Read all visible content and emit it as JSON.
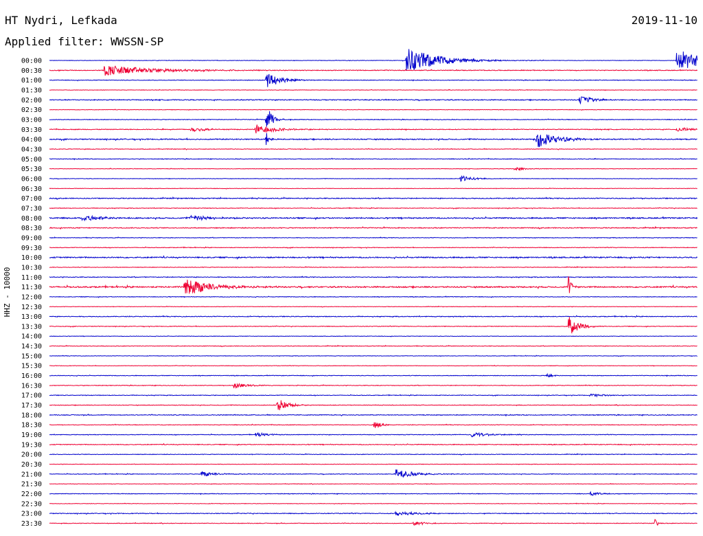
{
  "header": {
    "station": "HT Nydri, Lefkada",
    "date": "2019-11-10",
    "filter_prefix": "Applied filter:",
    "filter_name": "WWSSN-SP"
  },
  "chart_data": {
    "type": "helicorder",
    "ylabel": "HHZ - 10000",
    "row_labels": [
      "00:00",
      "00:30",
      "01:00",
      "01:30",
      "02:00",
      "02:30",
      "03:00",
      "03:30",
      "04:00",
      "04:30",
      "05:00",
      "05:30",
      "06:00",
      "06:30",
      "07:00",
      "07:30",
      "08:00",
      "08:30",
      "09:00",
      "09:30",
      "10:00",
      "10:30",
      "11:00",
      "11:30",
      "12:00",
      "12:30",
      "13:00",
      "13:30",
      "14:00",
      "14:30",
      "15:00",
      "15:30",
      "16:00",
      "16:30",
      "17:00",
      "17:30",
      "18:00",
      "18:30",
      "19:00",
      "19:30",
      "20:00",
      "20:30",
      "21:00",
      "21:30",
      "22:00",
      "22:30",
      "23:00",
      "23:30"
    ],
    "row_duration_min": 30,
    "colors": [
      "#0000cc",
      "#ee0033"
    ],
    "noise_levels": [
      0.3,
      0.5,
      0.4,
      0.3,
      0.6,
      0.3,
      0.4,
      0.5,
      0.7,
      0.4,
      0.4,
      0.3,
      0.3,
      0.3,
      0.6,
      0.4,
      0.8,
      0.6,
      0.4,
      0.4,
      0.8,
      0.4,
      0.5,
      0.9,
      0.4,
      0.3,
      0.5,
      0.4,
      0.3,
      0.4,
      0.3,
      0.3,
      0.4,
      0.4,
      0.4,
      0.4,
      0.5,
      0.4,
      0.4,
      0.5,
      0.4,
      0.3,
      0.4,
      0.3,
      0.4,
      0.3,
      0.5,
      0.4
    ],
    "events": [
      {
        "row": 0,
        "minute": 16.5,
        "amp": 20,
        "dur": 2.5
      },
      {
        "row": 0,
        "minute": 29.0,
        "amp": 18,
        "dur": 2.2
      },
      {
        "row": 1,
        "minute": 2.5,
        "amp": 8,
        "dur": 4.0
      },
      {
        "row": 2,
        "minute": 10.0,
        "amp": 12,
        "dur": 1.2
      },
      {
        "row": 4,
        "minute": 24.5,
        "amp": 6,
        "dur": 1.2
      },
      {
        "row": 6,
        "minute": 10.0,
        "amp": 30,
        "dur": 0.4
      },
      {
        "row": 7,
        "minute": 6.5,
        "amp": 4,
        "dur": 1.2
      },
      {
        "row": 7,
        "minute": 9.5,
        "amp": 8,
        "dur": 1.6
      },
      {
        "row": 7,
        "minute": 29.0,
        "amp": 4,
        "dur": 1.0
      },
      {
        "row": 8,
        "minute": 10.0,
        "amp": 14,
        "dur": 0.2
      },
      {
        "row": 8,
        "minute": 22.5,
        "amp": 14,
        "dur": 1.6
      },
      {
        "row": 11,
        "minute": 21.5,
        "amp": 4,
        "dur": 0.8
      },
      {
        "row": 12,
        "minute": 19.0,
        "amp": 5,
        "dur": 1.0
      },
      {
        "row": 16,
        "minute": 1.5,
        "amp": 6,
        "dur": 1.2
      },
      {
        "row": 16,
        "minute": 6.5,
        "amp": 4,
        "dur": 2.0
      },
      {
        "row": 23,
        "minute": 6.2,
        "amp": 14,
        "dur": 2.0
      },
      {
        "row": 23,
        "minute": 24.0,
        "amp": 30,
        "dur": 0.2
      },
      {
        "row": 27,
        "minute": 24.0,
        "amp": 16,
        "dur": 0.8
      },
      {
        "row": 32,
        "minute": 23.0,
        "amp": 4,
        "dur": 0.5
      },
      {
        "row": 33,
        "minute": 8.5,
        "amp": 4,
        "dur": 1.2
      },
      {
        "row": 34,
        "minute": 25.0,
        "amp": 3,
        "dur": 1.0
      },
      {
        "row": 35,
        "minute": 10.5,
        "amp": 12,
        "dur": 0.8
      },
      {
        "row": 37,
        "minute": 15.0,
        "amp": 12,
        "dur": 0.4
      },
      {
        "row": 38,
        "minute": 9.5,
        "amp": 4,
        "dur": 1.0
      },
      {
        "row": 38,
        "minute": 19.5,
        "amp": 4,
        "dur": 1.4
      },
      {
        "row": 42,
        "minute": 7.0,
        "amp": 4,
        "dur": 1.2
      },
      {
        "row": 42,
        "minute": 16.0,
        "amp": 8,
        "dur": 1.4
      },
      {
        "row": 44,
        "minute": 25.0,
        "amp": 3,
        "dur": 1.0
      },
      {
        "row": 46,
        "minute": 16.0,
        "amp": 4,
        "dur": 1.6
      },
      {
        "row": 47,
        "minute": 16.8,
        "amp": 3,
        "dur": 1.2
      },
      {
        "row": 47,
        "minute": 28.0,
        "amp": 10,
        "dur": 0.2
      }
    ]
  }
}
